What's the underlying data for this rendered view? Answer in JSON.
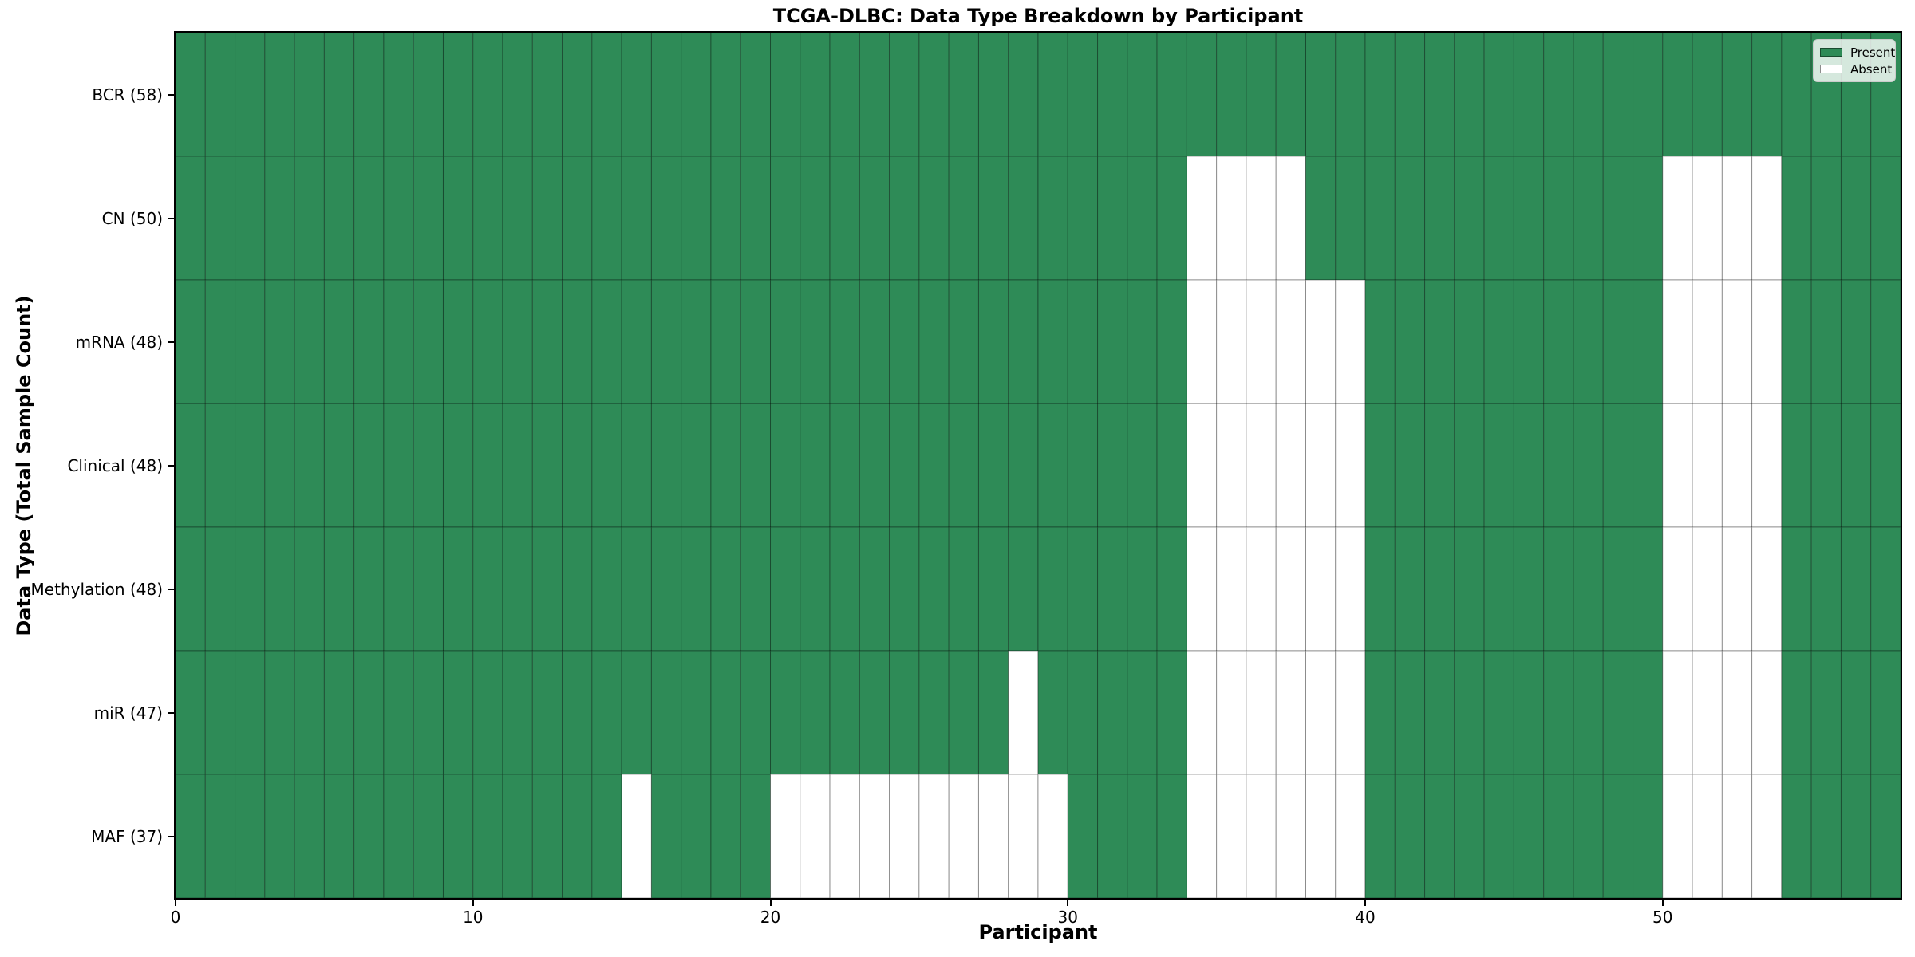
{
  "chart_data": {
    "type": "heatmap",
    "title": "TCGA-DLBC: Data Type Breakdown by Participant",
    "xlabel": "Participant",
    "ylabel": "Data Type (Total Sample Count)",
    "x_ticks": [
      0,
      10,
      20,
      30,
      40,
      50
    ],
    "x_range": [
      0,
      58
    ],
    "n_participants": 58,
    "grid": "cell-edges",
    "legend_position": "upper-right",
    "legend": [
      {
        "label": "Present",
        "key": "present"
      },
      {
        "label": "Absent",
        "key": "absent"
      }
    ],
    "colors": {
      "present": "#2e8b57",
      "absent": "#ffffff",
      "cell_edge": "rgba(0,0,0,0.35)",
      "spine": "#000000"
    },
    "rows": [
      {
        "label": "BCR (58)",
        "data_type": "BCR",
        "present_count": 58,
        "absent_participants": []
      },
      {
        "label": "CN (50)",
        "data_type": "CN",
        "present_count": 50,
        "absent_participants": [
          34,
          35,
          36,
          37,
          50,
          51,
          52,
          53
        ]
      },
      {
        "label": "mRNA (48)",
        "data_type": "mRNA",
        "present_count": 48,
        "absent_participants": [
          34,
          35,
          36,
          37,
          38,
          39,
          50,
          51,
          52,
          53
        ]
      },
      {
        "label": "Clinical (48)",
        "data_type": "Clinical",
        "present_count": 48,
        "absent_participants": [
          34,
          35,
          36,
          37,
          38,
          39,
          50,
          51,
          52,
          53
        ]
      },
      {
        "label": "Methylation (48)",
        "data_type": "Methylation",
        "present_count": 48,
        "absent_participants": [
          34,
          35,
          36,
          37,
          38,
          39,
          50,
          51,
          52,
          53
        ]
      },
      {
        "label": "miR (47)",
        "data_type": "miR",
        "present_count": 47,
        "absent_participants": [
          28,
          34,
          35,
          36,
          37,
          38,
          39,
          50,
          51,
          52,
          53
        ]
      },
      {
        "label": "MAF (37)",
        "data_type": "MAF",
        "present_count": 37,
        "absent_participants": [
          15,
          20,
          21,
          22,
          23,
          24,
          25,
          26,
          27,
          28,
          29,
          34,
          35,
          36,
          37,
          38,
          39,
          50,
          51,
          52,
          53
        ]
      }
    ]
  }
}
